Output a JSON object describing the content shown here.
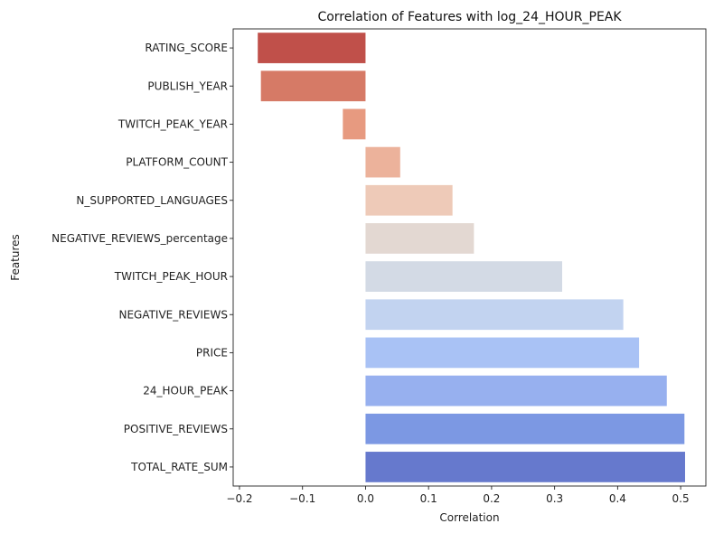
{
  "chart_data": {
    "type": "bar",
    "orientation": "horizontal",
    "title": "Correlation of Features with log_24_HOUR_PEAK",
    "xlabel": "Correlation",
    "ylabel": "Features",
    "xlim": [
      -0.21,
      0.54
    ],
    "xticks": [
      -0.2,
      -0.1,
      0.0,
      0.1,
      0.2,
      0.3,
      0.4,
      0.5
    ],
    "xtick_labels": [
      "−0.2",
      "−0.1",
      "0.0",
      "0.1",
      "0.2",
      "0.3",
      "0.4",
      "0.5"
    ],
    "grid": false,
    "legend": "none",
    "colormap": "coolwarm_r",
    "categories": [
      "RATING_SCORE",
      "PUBLISH_YEAR",
      "TWITCH_PEAK_YEAR",
      "PLATFORM_COUNT",
      "N_SUPPORTED_LANGUAGES",
      "NEGATIVE_REVIEWS_percentage",
      "TWITCH_PEAK_HOUR",
      "NEGATIVE_REVIEWS",
      "PRICE",
      "24_HOUR_PEAK",
      "POSITIVE_REVIEWS",
      "TOTAL_RATE_SUM"
    ],
    "values": [
      -0.171,
      -0.166,
      -0.036,
      0.055,
      0.138,
      0.172,
      0.312,
      0.409,
      0.434,
      0.478,
      0.506,
      0.507
    ],
    "colors": [
      "#c0504a",
      "#d67a66",
      "#e79a80",
      "#ecb29b",
      "#eecab8",
      "#e3d8d2",
      "#d3dae5",
      "#c2d3f0",
      "#a9c2f5",
      "#97b0ef",
      "#7c98e3",
      "#6679cd"
    ]
  }
}
